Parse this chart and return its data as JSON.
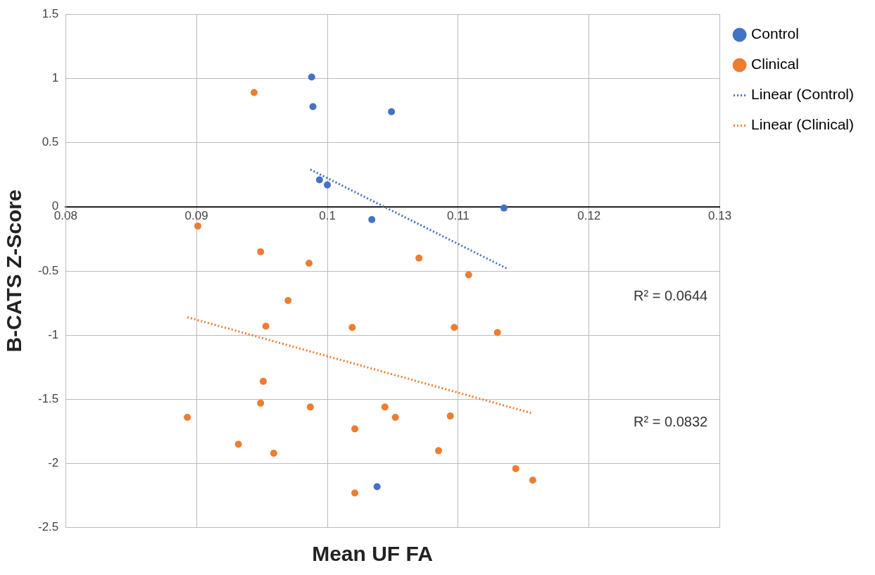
{
  "chart_data": {
    "type": "scatter",
    "xlabel": "Mean UF FA",
    "ylabel": "B-CATS Z-Score",
    "xlim": [
      0.08,
      0.13
    ],
    "xticks": [
      0.08,
      0.09,
      0.1,
      0.11,
      0.12,
      0.13
    ],
    "ylim": [
      -2.5,
      1.5
    ],
    "yticks": [
      -2.5,
      -2,
      -1.5,
      -1,
      -0.5,
      0,
      0.5,
      1,
      1.5
    ],
    "grid": true,
    "legend": "right",
    "marker": "circle",
    "series": [
      {
        "name": "Control",
        "type": "scatter",
        "color": "#4472c4",
        "x": [
          0.0988,
          0.0989,
          0.1049,
          0.0994,
          0.1,
          0.1135,
          0.1034,
          0.1038
        ],
        "values": [
          1.01,
          0.78,
          0.74,
          0.21,
          0.17,
          -0.01,
          -0.1,
          -2.18
        ]
      },
      {
        "name": "Clinical",
        "type": "scatter",
        "color": "#ed7d31",
        "x": [
          0.0944,
          0.0901,
          0.0949,
          0.0986,
          0.107,
          0.1108,
          0.097,
          0.0953,
          0.1019,
          0.1097,
          0.113,
          0.0951,
          0.0949,
          0.0987,
          0.0893,
          0.1044,
          0.1052,
          0.1094,
          0.1021,
          0.0932,
          0.0959,
          0.1085,
          0.1144,
          0.1157,
          0.1021
        ],
        "values": [
          0.89,
          -0.15,
          -0.35,
          -0.44,
          -0.4,
          -0.53,
          -0.73,
          -0.93,
          -0.94,
          -0.94,
          -0.98,
          -1.36,
          -1.53,
          -1.56,
          -1.64,
          -1.56,
          -1.64,
          -1.63,
          -1.73,
          -1.85,
          -1.92,
          -1.9,
          -2.04,
          -2.13,
          -2.23
        ]
      },
      {
        "name": "Linear (Control)",
        "type": "line",
        "line_style": "dotted",
        "marker": "none",
        "color": "#4472c4",
        "x": [
          0.0987,
          0.1137
        ],
        "values": [
          0.29,
          -0.48
        ]
      },
      {
        "name": "Linear (Clinical)",
        "type": "line",
        "line_style": "dotted",
        "marker": "none",
        "color": "#ed7d31",
        "x": [
          0.0893,
          0.1157
        ],
        "values": [
          -0.86,
          -1.61
        ]
      }
    ],
    "annotations": [
      "R² = 0.0644",
      "R² = 0.0832"
    ]
  }
}
